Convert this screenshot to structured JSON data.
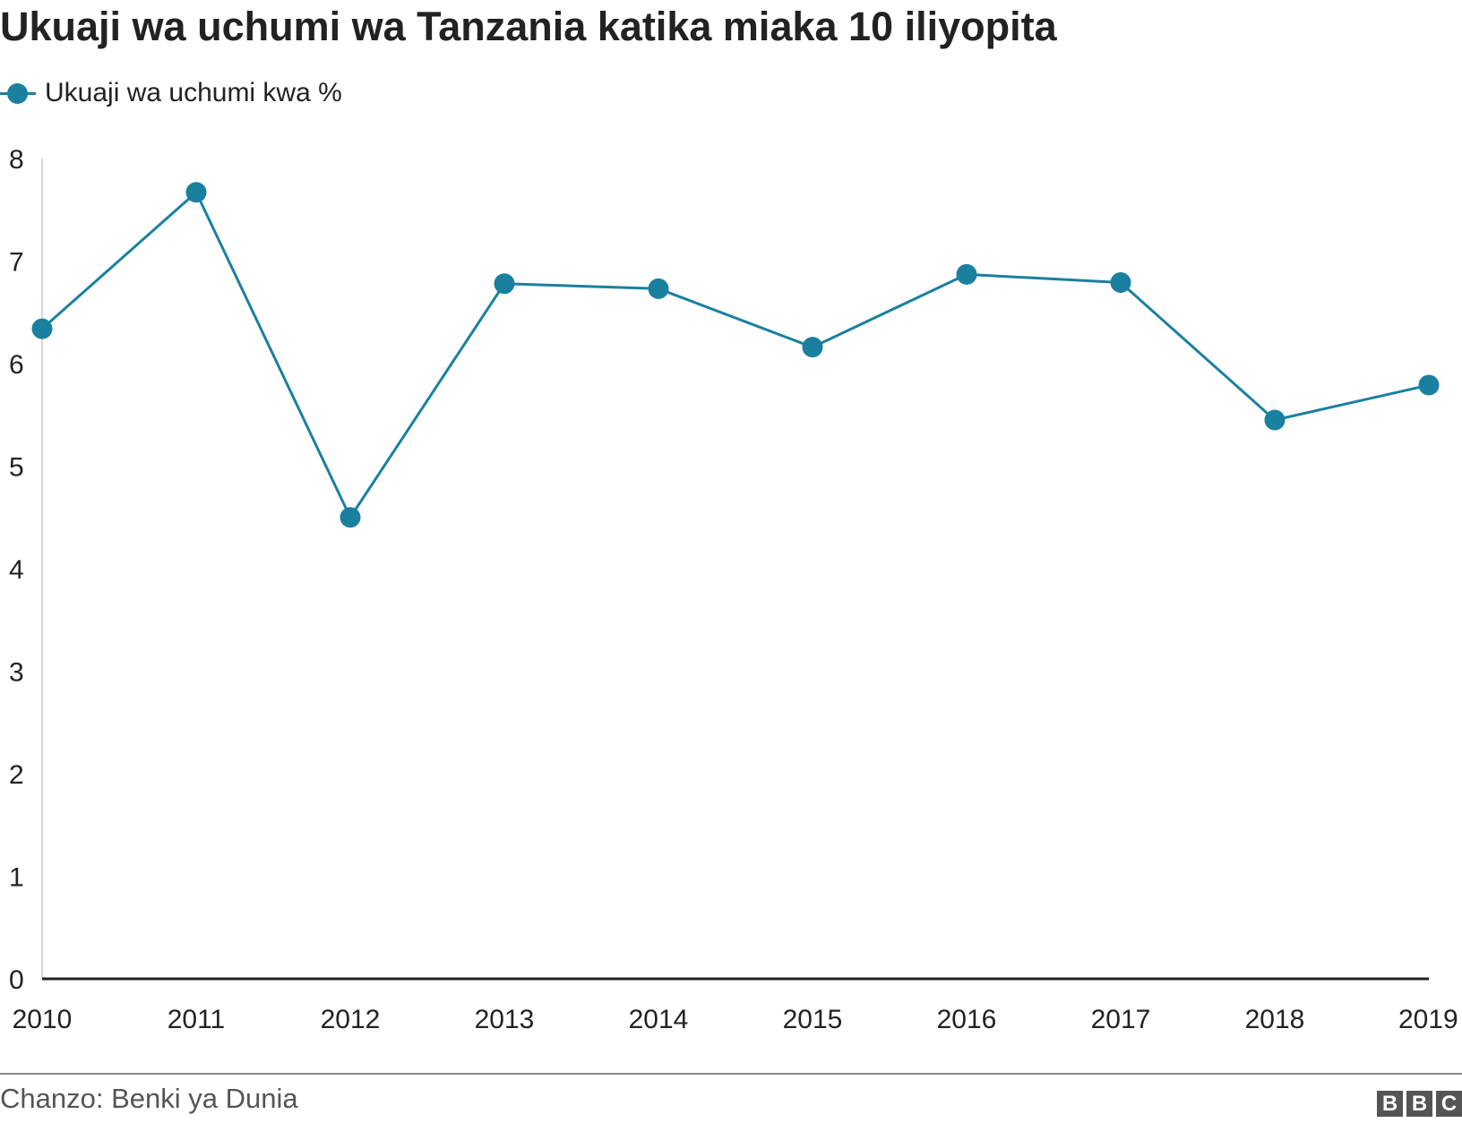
{
  "header": {
    "title": "Ukuaji wa uchumi wa Tanzania katika miaka 10 iliyopita"
  },
  "legend": {
    "label": "Ukuaji wa uchumi kwa %"
  },
  "colors": {
    "series": "#1a80a0",
    "axis": "#222222",
    "gridline": "#cccccc",
    "text": "#222222",
    "muted": "#555555"
  },
  "chart_data": {
    "type": "line",
    "title": "Ukuaji wa uchumi wa Tanzania katika miaka 10 iliyopita",
    "xlabel": "",
    "ylabel": "",
    "x": [
      "2010",
      "2011",
      "2012",
      "2013",
      "2014",
      "2015",
      "2016",
      "2017",
      "2018",
      "2019"
    ],
    "series": [
      {
        "name": "Ukuaji wa uchumi kwa %",
        "values": [
          6.34,
          7.67,
          4.5,
          6.78,
          6.73,
          6.16,
          6.87,
          6.79,
          5.45,
          5.79
        ]
      }
    ],
    "ylim": [
      0,
      8
    ],
    "yticks": [
      "0",
      "1",
      "2",
      "3",
      "4",
      "5",
      "6",
      "7",
      "8"
    ],
    "grid": false,
    "legend_position": "top-left",
    "marker": "circle"
  },
  "footer": {
    "source": "Chanzo: Benki ya Dunia",
    "logo_letters": [
      "B",
      "B",
      "C"
    ]
  }
}
